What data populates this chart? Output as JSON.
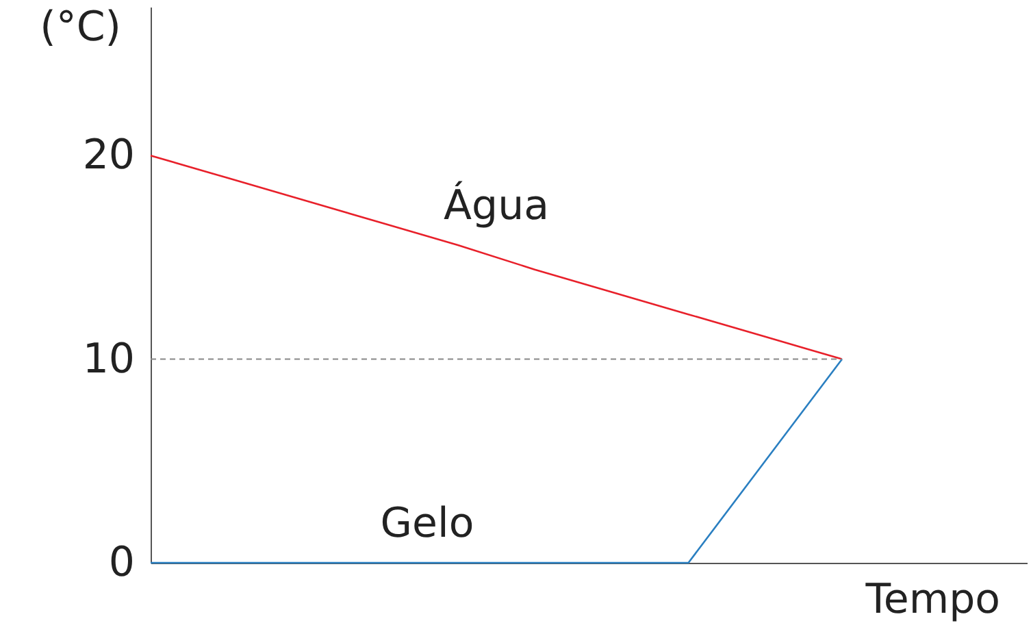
{
  "chart_data": {
    "type": "line",
    "xlabel": "Tempo",
    "ylabel": "(°C)",
    "categories": [
      null,
      null,
      null,
      null,
      null,
      null,
      null,
      null,
      null,
      null
    ],
    "series": [
      {
        "name": "Água",
        "color": "#e8202a",
        "values": [
          20,
          18.9,
          17.8,
          16.7,
          15.6,
          14.4,
          13.3,
          12.2,
          11.1,
          10
        ]
      },
      {
        "name": "Gelo",
        "color": "#2a7fc1",
        "values": [
          0,
          0,
          0,
          0,
          0,
          0,
          0,
          0,
          5,
          10
        ]
      }
    ],
    "ylim": [
      0,
      27.3
    ],
    "yticks": [
      0,
      10,
      20
    ],
    "ref_lines": [
      {
        "axis": "y",
        "value": 10,
        "label": null,
        "color": "#888888",
        "line_style": "dashed"
      }
    ],
    "tick_labels": "y",
    "grid": false,
    "marker": "none",
    "line_style": "solid"
  }
}
